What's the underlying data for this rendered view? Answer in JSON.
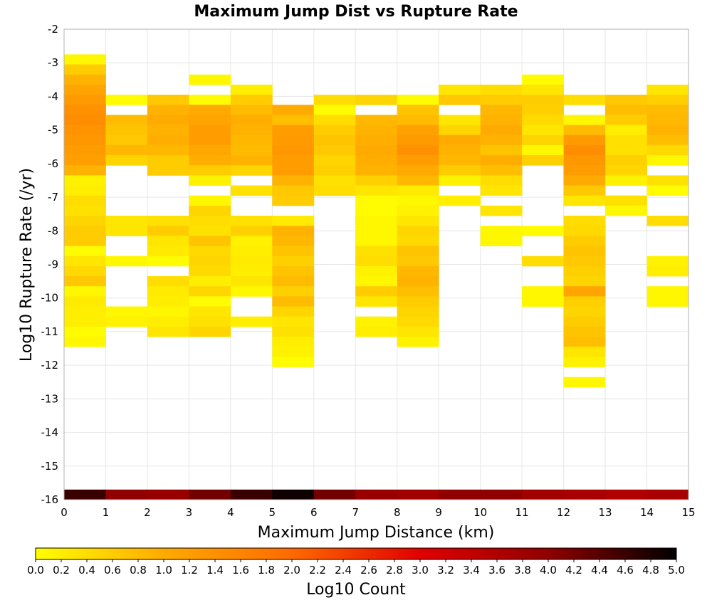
{
  "chart_data": {
    "type": "heatmap",
    "title": "Maximum Jump Dist vs Rupture Rate",
    "xlabel": "Maximum Jump Distance (km)",
    "ylabel": "Log10 Rupture Rate (/yr)",
    "xlim": [
      0,
      15
    ],
    "ylim": [
      -16,
      -2
    ],
    "x_ticks": [
      "0",
      "1",
      "2",
      "3",
      "4",
      "5",
      "6",
      "7",
      "8",
      "9",
      "10",
      "11",
      "12",
      "13",
      "14",
      "15"
    ],
    "y_ticks": [
      "-2",
      "-3",
      "-4",
      "-5",
      "-6",
      "-7",
      "-8",
      "-9",
      "-10",
      "-11",
      "-12",
      "-13",
      "-14",
      "-15",
      "-16"
    ],
    "colorbar": {
      "label": "Log10 Count",
      "min": 0.0,
      "max": 5.0,
      "ticks": [
        "0.0",
        "0.2",
        "0.4",
        "0.6",
        "0.8",
        "1.0",
        "1.2",
        "1.4",
        "1.6",
        "1.8",
        "2.0",
        "2.2",
        "2.4",
        "2.6",
        "2.8",
        "3.0",
        "3.2",
        "3.4",
        "3.6",
        "3.8",
        "4.0",
        "4.2",
        "4.4",
        "4.6",
        "4.8",
        "5.0"
      ],
      "colors": [
        "#ffff00",
        "#ffaa00",
        "#ff6a00",
        "#e00000",
        "#900000",
        "#000000"
      ]
    },
    "x_bin_width": 1,
    "y_bin_height": 0.3,
    "columns": [
      {
        "x": 0,
        "y_start": -2.75,
        "values": [
          0.1,
          0.6,
          0.9,
          1.1,
          1.25,
          1.4,
          1.45,
          1.35,
          1.3,
          1.2,
          1.15,
          0.9,
          0.15,
          0.2,
          0.4,
          0.35,
          0.5,
          0.6,
          0.6,
          0.05,
          0.3,
          0.45,
          0.65,
          0.1,
          0.25,
          0.2,
          0.2,
          0.05,
          0.1
        ]
      },
      {
        "x": 1,
        "y_start": -3.95,
        "values": [
          0.05,
          null,
          0.8,
          0.7,
          0.65,
          0.85,
          0.5,
          null,
          null,
          null,
          null,
          null,
          0.3,
          0.3,
          null,
          null,
          0.1,
          null,
          null,
          null,
          null,
          0.1,
          0.15
        ]
      },
      {
        "x": 2,
        "y_start": -3.95,
        "values": [
          0.65,
          0.9,
          1.0,
          0.9,
          0.95,
          0.85,
          0.6,
          0.6,
          null,
          null,
          null,
          null,
          0.35,
          0.6,
          0.3,
          0.25,
          0.05,
          null,
          0.4,
          0.25,
          0.2,
          0.1,
          0.2,
          0.3
        ]
      },
      {
        "x": 3,
        "y_start": -3.35,
        "values": [
          0.1,
          null,
          0.05,
          1.0,
          1.1,
          1.2,
          1.2,
          1.05,
          0.95,
          0.6,
          0.15,
          null,
          0.1,
          0.5,
          0.4,
          0.35,
          0.7,
          0.45,
          0.5,
          0.45,
          0.2,
          0.5,
          0.05,
          0.3,
          0.35,
          0.5
        ]
      },
      {
        "x": 4,
        "y_start": -3.65,
        "values": [
          0.2,
          0.6,
          0.8,
          0.95,
          0.9,
          0.85,
          0.8,
          0.9,
          0.5,
          null,
          0.35,
          null,
          null,
          0.35,
          0.55,
          0.15,
          0.2,
          0.25,
          0.2,
          0.3,
          0.1,
          null,
          null,
          0.2
        ]
      },
      {
        "x": 5,
        "y_start": -4.25,
        "values": [
          1.0,
          0.75,
          1.2,
          1.25,
          1.3,
          1.2,
          1.2,
          0.9,
          0.65,
          0.6,
          null,
          0.25,
          0.9,
          0.85,
          0.7,
          0.55,
          0.7,
          0.8,
          0.55,
          0.8,
          0.5,
          0.3,
          0.35,
          0.2,
          0.15,
          0.05
        ]
      },
      {
        "x": 6,
        "y_start": -3.95,
        "values": [
          0.4,
          0.05,
          0.4,
          0.6,
          0.7,
          0.65,
          0.5,
          0.55,
          0.35,
          0.4
        ]
      },
      {
        "x": 7,
        "y_start": -3.95,
        "values": [
          0.5,
          null,
          0.85,
          0.9,
          0.95,
          1.0,
          0.95,
          0.9,
          0.55,
          0.3,
          0.05,
          0.05,
          0.1,
          0.1,
          0.1,
          0.35,
          0.4,
          0.15,
          0.1,
          0.6,
          0.3,
          null,
          0.15,
          0.2
        ]
      },
      {
        "x": 8,
        "y_start": -3.95,
        "values": [
          0.05,
          0.7,
          0.8,
          1.15,
          1.25,
          1.4,
          1.2,
          1.0,
          0.85,
          0.25,
          0.1,
          0.15,
          0.3,
          0.5,
          0.45,
          0.7,
          0.65,
          0.85,
          0.9,
          0.75,
          0.6,
          0.5,
          0.45,
          0.3,
          0.15
        ]
      },
      {
        "x": 9,
        "y_start": -3.65,
        "values": [
          0.3,
          0.65,
          null,
          0.3,
          0.5,
          1.0,
          0.9,
          0.85,
          0.6,
          0.15,
          null,
          0.2
        ]
      },
      {
        "x": 10,
        "y_start": -3.65,
        "values": [
          0.4,
          0.6,
          0.85,
          0.9,
          1.0,
          0.9,
          0.7,
          0.95,
          0.75,
          0.4,
          0.3,
          null,
          0.3,
          null,
          0.1,
          0.1
        ]
      },
      {
        "x": 11,
        "y_start": -3.35,
        "values": [
          0.05,
          0.3,
          0.6,
          0.55,
          0.45,
          0.3,
          0.5,
          0.1,
          0.55,
          null,
          null,
          null,
          null,
          null,
          null,
          0.05,
          null,
          null,
          0.4,
          null,
          null,
          0.1,
          0.1
        ]
      },
      {
        "x": 12,
        "y_start": -3.95,
        "values": [
          0.4,
          null,
          0.1,
          0.8,
          1.25,
          1.45,
          1.3,
          1.2,
          1.0,
          0.65,
          0.3,
          null,
          0.4,
          0.45,
          0.6,
          0.7,
          0.65,
          0.55,
          0.5,
          1.1,
          0.55,
          0.5,
          0.6,
          0.7,
          0.75,
          0.3,
          0.15,
          null,
          0.1
        ]
      },
      {
        "x": 13,
        "y_start": -3.95,
        "values": [
          0.65,
          0.75,
          0.6,
          0.2,
          0.35,
          0.35,
          0.55,
          0.5,
          0.15,
          null,
          0.35,
          0.1
        ]
      },
      {
        "x": 14,
        "y_start": -3.65,
        "values": [
          0.3,
          0.55,
          0.8,
          0.85,
          0.9,
          0.75,
          0.45,
          0.1,
          null,
          0.35,
          0.05,
          null,
          null,
          0.4,
          null,
          null,
          null,
          0.15,
          0.2,
          null,
          0.1,
          0.1
        ]
      }
    ],
    "bottom_row": {
      "y": -16,
      "values": [
        4.6,
        4.0,
        3.9,
        4.2,
        4.6,
        4.9,
        4.2,
        3.9,
        3.8,
        4.0,
        4.0,
        3.8,
        3.7,
        3.6,
        3.7
      ]
    }
  }
}
